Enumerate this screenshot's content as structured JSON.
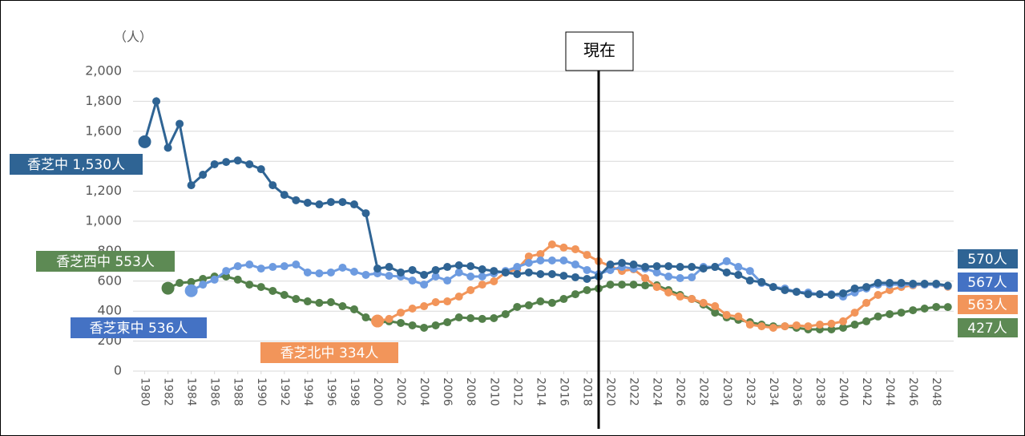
{
  "chart_data": {
    "type": "line",
    "unit_label": "（人）",
    "x": [
      1980,
      1981,
      1982,
      1983,
      1984,
      1985,
      1986,
      1987,
      1988,
      1989,
      1990,
      1991,
      1992,
      1993,
      1994,
      1995,
      1996,
      1997,
      1998,
      1999,
      2000,
      2001,
      2002,
      2003,
      2004,
      2005,
      2006,
      2007,
      2008,
      2009,
      2010,
      2011,
      2012,
      2013,
      2014,
      2015,
      2016,
      2017,
      2018,
      2019,
      2020,
      2021,
      2022,
      2023,
      2024,
      2025,
      2026,
      2027,
      2028,
      2029,
      2030,
      2031,
      2032,
      2033,
      2034,
      2035,
      2036,
      2037,
      2038,
      2039,
      2040,
      2041,
      2042,
      2043,
      2044,
      2045,
      2046,
      2047,
      2048,
      2049
    ],
    "xlim": [
      1979,
      2049.5
    ],
    "xticks": [
      1980,
      1982,
      1984,
      1986,
      1988,
      1990,
      1992,
      1994,
      1996,
      1998,
      2000,
      2002,
      2004,
      2006,
      2008,
      2010,
      2012,
      2014,
      2016,
      2018,
      2020,
      2022,
      2024,
      2026,
      2028,
      2030,
      2032,
      2034,
      2036,
      2038,
      2040,
      2042,
      2044,
      2046,
      2048
    ],
    "ylim": [
      0,
      2000
    ],
    "yticks": [
      0,
      {
        "value": 200,
        "label": "200"
      },
      {
        "value": 400,
        "label": "400"
      },
      600,
      {
        "value": 800,
        "label": "800"
      },
      {
        "value": 1000,
        "label": "1,000"
      },
      {
        "value": 1200,
        "label": "1,200"
      },
      {
        "value": 1400,
        "label": "1,400"
      },
      {
        "value": 1600,
        "label": "1,600"
      },
      {
        "value": 1800,
        "label": "1,800"
      },
      {
        "value": 2000,
        "label": "2,000"
      }
    ],
    "grid": true,
    "annotation": {
      "text": "現在",
      "x": 2019
    },
    "series": [
      {
        "label": "香芝中 1,530人",
        "end_label": "570人",
        "color": "#2f6494",
        "values": [
          1530,
          1800,
          1490,
          1650,
          1240,
          1310,
          1380,
          1395,
          1405,
          1380,
          1347,
          1240,
          1176,
          1140,
          1123,
          1112,
          1128,
          1128,
          1112,
          1053,
          684,
          695,
          658,
          674,
          642,
          674,
          695,
          706,
          700,
          679,
          668,
          658,
          647,
          658,
          647,
          647,
          636,
          626,
          615,
          631,
          711,
          722,
          711,
          695,
          700,
          700,
          695,
          695,
          684,
          695,
          658,
          642,
          604,
          594,
          561,
          540,
          529,
          513,
          513,
          508,
          519,
          551,
          561,
          588,
          588,
          588,
          583,
          583,
          583,
          570
        ]
      },
      {
        "label": "香芝東中 536人",
        "end_label": "567人",
        "color": "#6d9be0",
        "values": [
          null,
          null,
          null,
          null,
          536,
          577,
          610,
          668,
          700,
          711,
          684,
          695,
          700,
          711,
          658,
          652,
          658,
          690,
          663,
          642,
          652,
          636,
          631,
          604,
          577,
          631,
          604,
          658,
          631,
          631,
          652,
          668,
          695,
          722,
          738,
          738,
          738,
          711,
          674,
          647,
          674,
          695,
          684,
          684,
          658,
          631,
          620,
          626,
          695,
          695,
          733,
          695,
          668,
          588,
          561,
          551,
          529,
          524,
          513,
          513,
          497,
          524,
          551,
          577,
          577,
          577,
          577,
          577,
          577,
          567
        ]
      },
      {
        "label": "香芝西中 553人",
        "end_label": "427人",
        "color": "#53804a",
        "values": [
          null,
          null,
          553,
          588,
          594,
          615,
          631,
          631,
          610,
          577,
          561,
          535,
          508,
          481,
          465,
          455,
          460,
          433,
          412,
          358,
          321,
          332,
          321,
          305,
          289,
          305,
          326,
          358,
          353,
          348,
          353,
          380,
          428,
          439,
          465,
          455,
          481,
          513,
          540,
          551,
          577,
          577,
          577,
          572,
          572,
          540,
          508,
          481,
          444,
          390,
          358,
          342,
          326,
          310,
          299,
          299,
          289,
          278,
          278,
          278,
          289,
          310,
          332,
          364,
          380,
          390,
          406,
          417,
          428,
          427
        ]
      },
      {
        "label": "香芝北中 334人",
        "end_label": "563人",
        "color": "#f2955a",
        "values": [
          null,
          null,
          null,
          null,
          null,
          null,
          null,
          null,
          null,
          null,
          null,
          null,
          null,
          null,
          null,
          null,
          null,
          null,
          null,
          null,
          334,
          348,
          390,
          417,
          433,
          460,
          465,
          497,
          540,
          577,
          599,
          658,
          679,
          765,
          781,
          845,
          824,
          813,
          775,
          733,
          700,
          668,
          679,
          620,
          561,
          524,
          497,
          481,
          455,
          433,
          374,
          364,
          310,
          299,
          289,
          299,
          305,
          299,
          310,
          316,
          332,
          390,
          455,
          508,
          540,
          561,
          572,
          577,
          577,
          563
        ]
      }
    ]
  }
}
